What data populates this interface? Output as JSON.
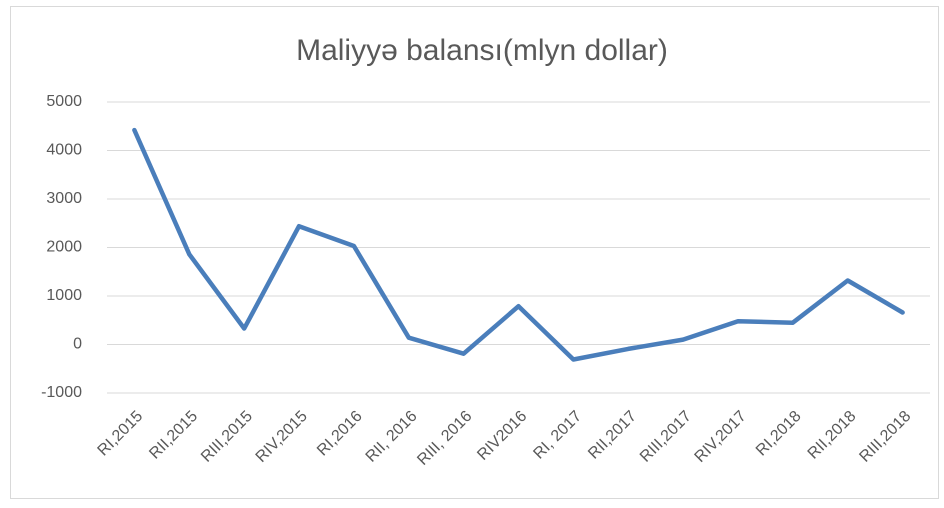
{
  "chart_data": {
    "type": "line",
    "title": "Maliyyə balansı(mlyn dollar)",
    "categories": [
      "RI,2015",
      "RII,2015",
      "RIII,2015",
      "RIV,2015",
      "RI,2016",
      "RII, 2016",
      "RIII, 2016",
      "RIV2016",
      "RI, 2017",
      "RII,2017",
      "RIII,2017",
      "RIV,2017",
      "RI,2018",
      "RII,2018",
      "RIII,2018"
    ],
    "values": [
      4420,
      1860,
      330,
      2440,
      2030,
      140,
      -190,
      790,
      -310,
      -90,
      100,
      480,
      450,
      1320,
      660
    ],
    "color": "#4a7ebb",
    "ylim": [
      -1000,
      5000
    ],
    "yticks": [
      -1000,
      0,
      1000,
      2000,
      3000,
      4000,
      5000
    ],
    "grid": true
  }
}
